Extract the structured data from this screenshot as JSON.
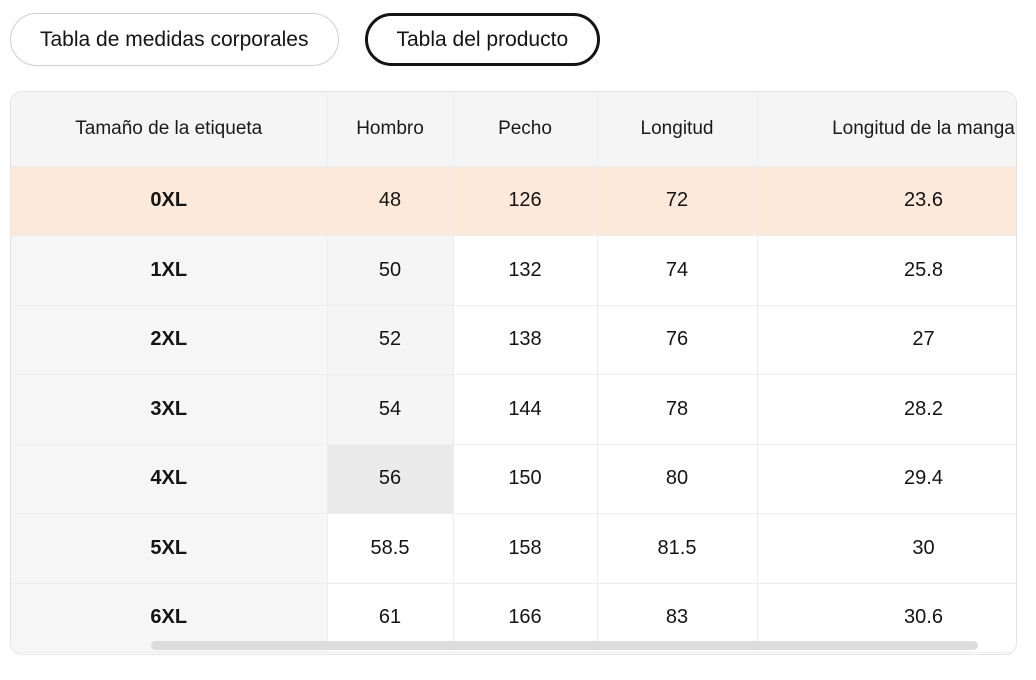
{
  "tabs": [
    {
      "id": "body-measurements",
      "label": "Tabla de medidas corporales",
      "selected": false
    },
    {
      "id": "product-table",
      "label": "Tabla del producto",
      "selected": true
    }
  ],
  "size_table": {
    "columns": [
      {
        "id": "tamano-etiqueta",
        "label": "Tamaño de la etiqueta"
      },
      {
        "id": "hombro",
        "label": "Hombro"
      },
      {
        "id": "pecho",
        "label": "Pecho"
      },
      {
        "id": "longitud",
        "label": "Longitud"
      },
      {
        "id": "longitud-manga",
        "label": "Longitud de la manga"
      }
    ],
    "rows": [
      {
        "id": "0xl",
        "label": "0XL",
        "values": [
          "48",
          "126",
          "72",
          "23.6"
        ],
        "highlighted": true,
        "shoulder_state": "normal"
      },
      {
        "id": "1xl",
        "label": "1XL",
        "values": [
          "50",
          "132",
          "74",
          "25.8"
        ],
        "highlighted": false,
        "shoulder_state": "shaded"
      },
      {
        "id": "2xl",
        "label": "2XL",
        "values": [
          "52",
          "138",
          "76",
          "27"
        ],
        "highlighted": false,
        "shoulder_state": "shaded"
      },
      {
        "id": "3xl",
        "label": "3XL",
        "values": [
          "54",
          "144",
          "78",
          "28.2"
        ],
        "highlighted": false,
        "shoulder_state": "shaded"
      },
      {
        "id": "4xl",
        "label": "4XL",
        "values": [
          "56",
          "150",
          "80",
          "29.4"
        ],
        "highlighted": false,
        "shoulder_state": "selected"
      },
      {
        "id": "5xl",
        "label": "5XL",
        "values": [
          "58.5",
          "158",
          "81.5",
          "30"
        ],
        "highlighted": false,
        "shoulder_state": "normal"
      },
      {
        "id": "6xl",
        "label": "6XL",
        "values": [
          "61",
          "166",
          "83",
          "30.6"
        ],
        "highlighted": false,
        "shoulder_state": "normal"
      }
    ]
  },
  "scrollbar": {
    "orientation": "horizontal"
  },
  "colors": {
    "highlight_row": "#fce9d9",
    "shaded_cell": "#f5f5f6",
    "selected_cell": "#eaeaea",
    "scrollbar_thumb": "#dcdcdc",
    "tab_selected_border": "#141414"
  }
}
